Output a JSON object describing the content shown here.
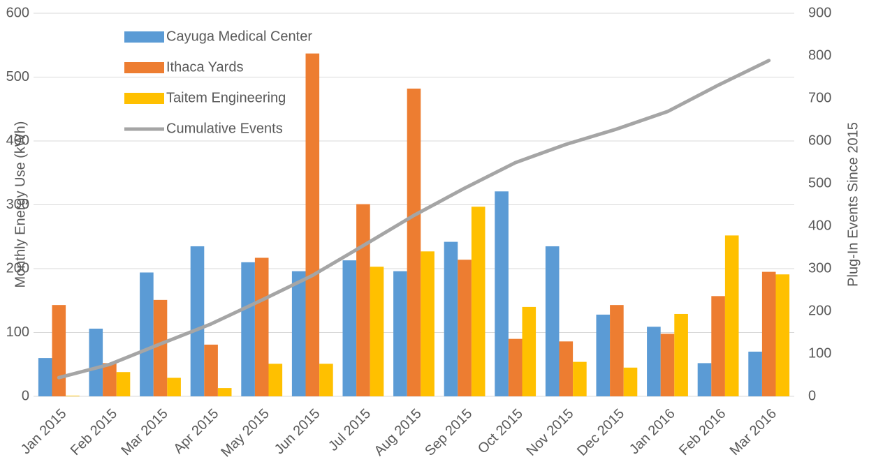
{
  "chart_data": {
    "type": "bar",
    "categories": [
      "Jan 2015",
      "Feb 2015",
      "Mar 2015",
      "Apr 2015",
      "May 2015",
      "Jun 2015",
      "Jul 2015",
      "Aug 2015",
      "Sep 2015",
      "Oct 2015",
      "Nov 2015",
      "Dec 2015",
      "Jan 2016",
      "Feb 2016",
      "Mar 2016"
    ],
    "series": [
      {
        "name": "Cayuga Medical Center",
        "color": "#5b9bd5",
        "type": "bar",
        "values": [
          60,
          106,
          194,
          235,
          210,
          196,
          213,
          196,
          242,
          321,
          235,
          128,
          109,
          52,
          70
        ]
      },
      {
        "name": "Ithaca Yards",
        "color": "#ed7d31",
        "type": "bar",
        "values": [
          143,
          52,
          151,
          81,
          217,
          537,
          301,
          482,
          214,
          90,
          86,
          143,
          98,
          157,
          195
        ]
      },
      {
        "name": "Taitem Engineering",
        "color": "#ffc000",
        "type": "bar",
        "values": [
          1,
          38,
          29,
          13,
          51,
          51,
          203,
          227,
          297,
          140,
          54,
          45,
          129,
          252,
          191
        ]
      },
      {
        "name": "Cumulative Events",
        "color": "#a5a5a5",
        "type": "line",
        "axis": "y2",
        "values": [
          44,
          75,
          123,
          170,
          226,
          284,
          354,
          425,
          489,
          549,
          592,
          628,
          669,
          731,
          789
        ]
      }
    ],
    "ylabel": "Monthly Energy Use (kWh)",
    "y2label": "Plug-In Events Since 2015",
    "ylim": [
      0,
      600
    ],
    "yticks": [
      0,
      100,
      200,
      300,
      400,
      500,
      600
    ],
    "y2lim": [
      0,
      900
    ],
    "y2ticks": [
      0,
      100,
      200,
      300,
      400,
      500,
      600,
      700,
      800,
      900
    ],
    "grid": true,
    "legend": "upper left"
  }
}
